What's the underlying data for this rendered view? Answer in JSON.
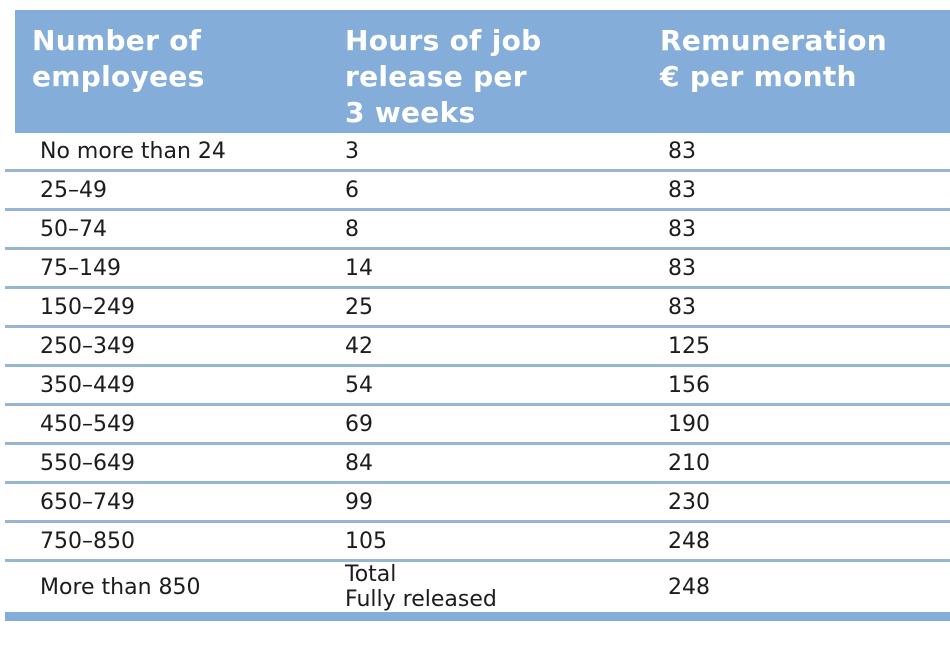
{
  "header": {
    "columns": [
      "Number of\nemployees",
      "Hours of job\nrelease per\n3 weeks",
      "Remuneration\n€ per month"
    ]
  },
  "rows": [
    {
      "employees": "No more than 24",
      "hours": "3",
      "remuneration": "83"
    },
    {
      "employees": "25–49",
      "hours": "6",
      "remuneration": "83"
    },
    {
      "employees": "50–74",
      "hours": "8",
      "remuneration": "83"
    },
    {
      "employees": "75–149",
      "hours": "14",
      "remuneration": "83"
    },
    {
      "employees": "150–249",
      "hours": "25",
      "remuneration": "83"
    },
    {
      "employees": "250–349",
      "hours": "42",
      "remuneration": "125"
    },
    {
      "employees": "350–449",
      "hours": "54",
      "remuneration": "156"
    },
    {
      "employees": "450–549",
      "hours": "69",
      "remuneration": "190"
    },
    {
      "employees": "550–649",
      "hours": "84",
      "remuneration": "210"
    },
    {
      "employees": "650–749",
      "hours": "99",
      "remuneration": "230"
    },
    {
      "employees": "750–850",
      "hours": "105",
      "remuneration": "248"
    },
    {
      "employees": "More than 850",
      "hours": "Total\nFully released",
      "remuneration": "248"
    }
  ],
  "colors": {
    "header_bg": "#84aed9",
    "header_text": "#ffffff",
    "row_divider": "#97b6d6",
    "bottom_bar": "#84aed9",
    "body_text": "#1c1c1c"
  }
}
